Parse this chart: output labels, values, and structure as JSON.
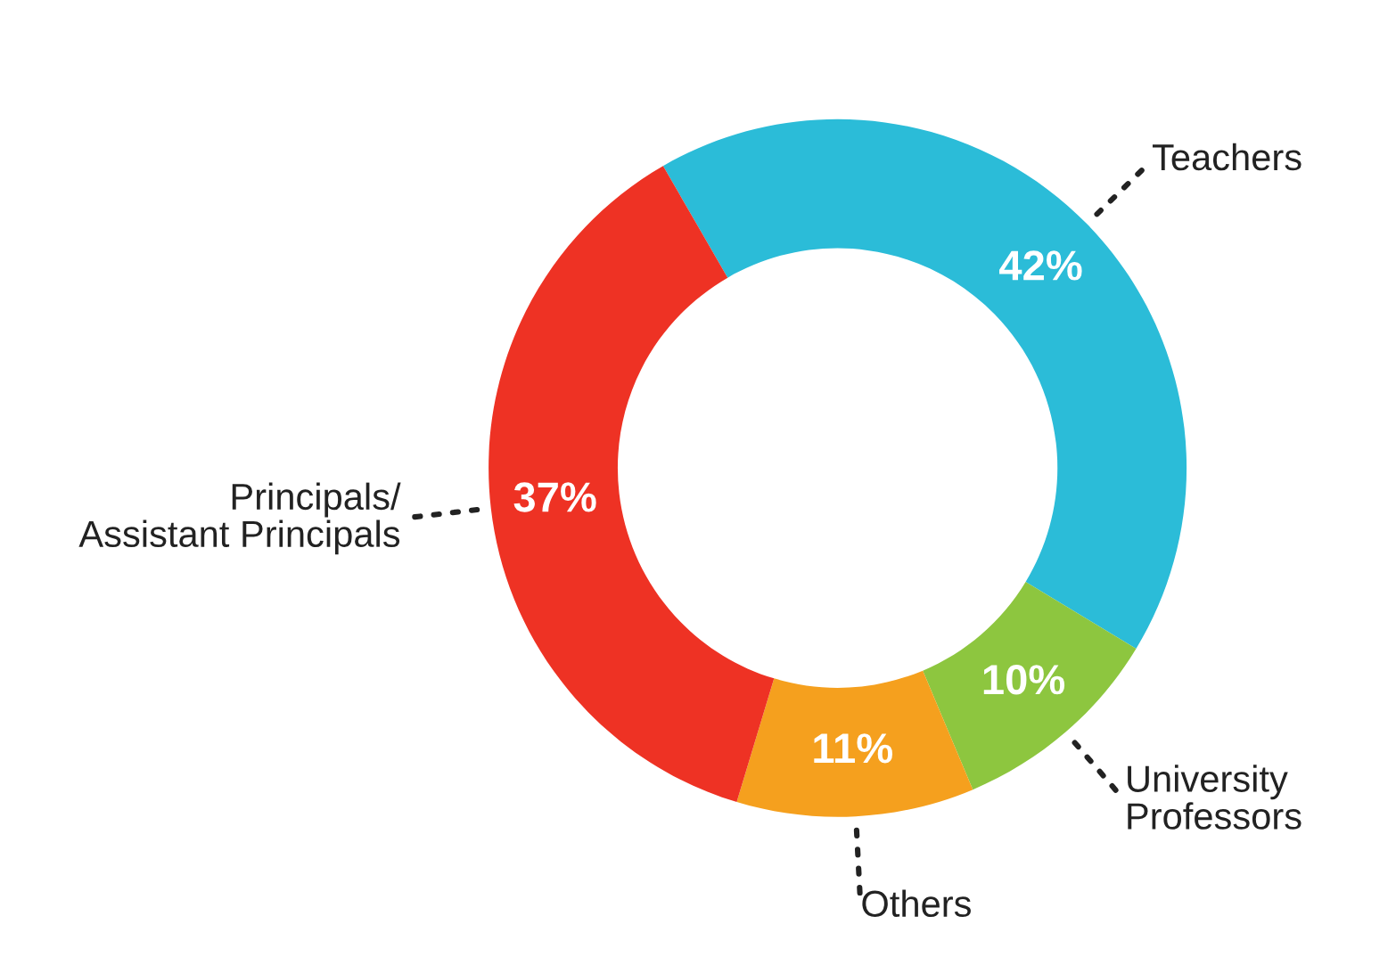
{
  "chart_data": {
    "type": "donut",
    "categories": [
      "Teachers",
      "University\nProfessors",
      "Others",
      "Principals/\nAssistant Principals"
    ],
    "values": [
      42,
      10,
      11,
      37
    ],
    "colors": [
      "#2bbcd8",
      "#8dc63f",
      "#f5a01e",
      "#ee3224"
    ],
    "value_labels": [
      "42%",
      "10%",
      "11%",
      "37%"
    ]
  }
}
